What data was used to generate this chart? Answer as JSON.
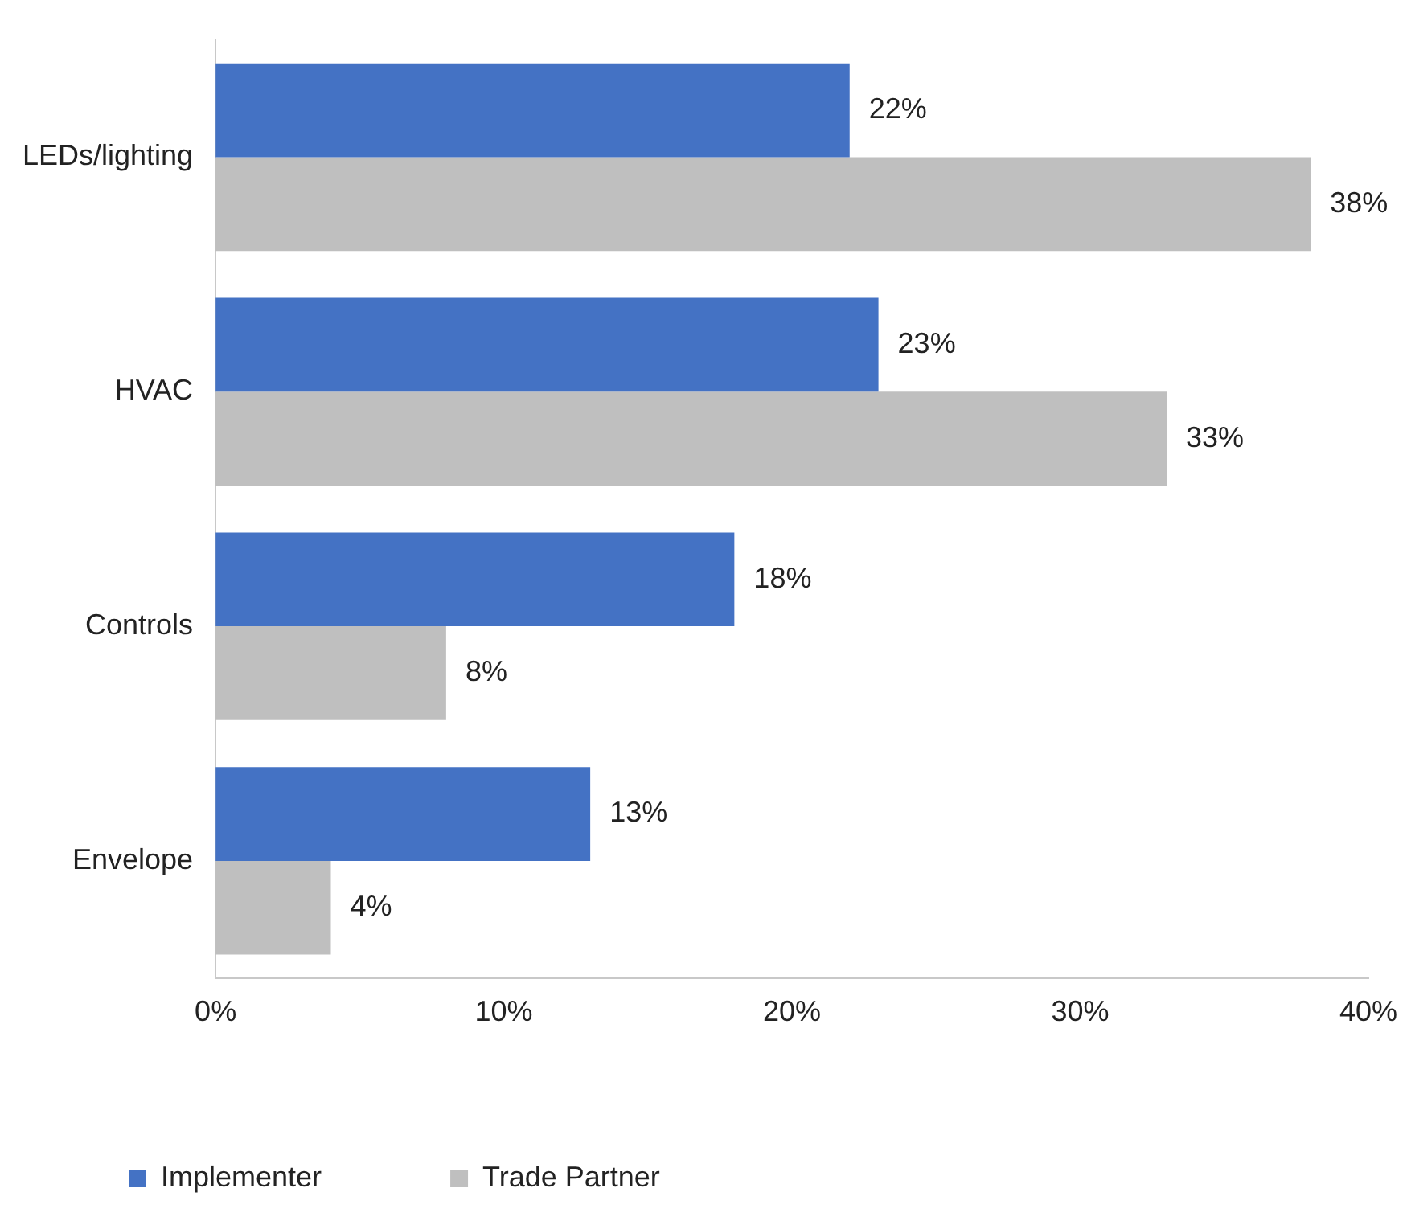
{
  "chart_data": {
    "type": "bar",
    "orientation": "horizontal",
    "categories": [
      "LEDs/lighting",
      "HVAC",
      "Controls",
      "Envelope"
    ],
    "series": [
      {
        "name": "Implementer",
        "color": "#4472c4",
        "values": [
          22,
          23,
          18,
          13
        ],
        "value_labels": [
          "22%",
          "23%",
          "18%",
          "13%"
        ]
      },
      {
        "name": "Trade Partner",
        "color": "#bfbfbf",
        "values": [
          38,
          33,
          8,
          4
        ],
        "value_labels": [
          "38%",
          "33%",
          "8%",
          "4%"
        ]
      }
    ],
    "xlim": [
      0,
      40
    ],
    "xticks": [
      {
        "value": 0,
        "label": "0%"
      },
      {
        "value": 10,
        "label": "10%"
      },
      {
        "value": 20,
        "label": "20%"
      },
      {
        "value": 30,
        "label": "30%"
      },
      {
        "value": 40,
        "label": "40%"
      }
    ],
    "grid": false,
    "legend": "bottom left"
  }
}
